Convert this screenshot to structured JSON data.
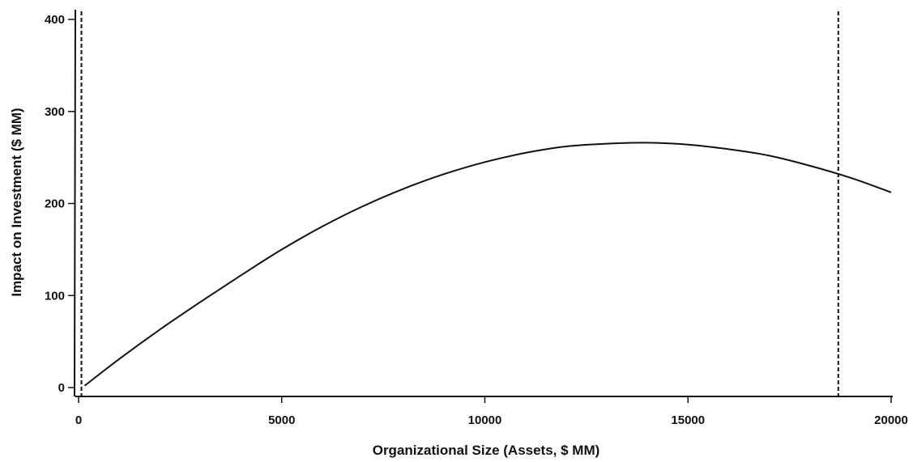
{
  "chart_data": {
    "type": "line",
    "title": "",
    "xlabel": "Organizational Size (Assets, $ MM)",
    "ylabel": "Impact on Investment ($ MM)",
    "xlim": [
      0,
      20000
    ],
    "ylim": [
      0,
      400
    ],
    "x_ticks": [
      0,
      5000,
      10000,
      15000,
      20000
    ],
    "y_ticks": [
      0,
      100,
      200,
      300,
      400
    ],
    "grid": false,
    "legend": "none",
    "line_color": "#111111",
    "series": [
      {
        "x": [
          150,
          1000,
          2000,
          3000,
          4000,
          5000,
          6000,
          7000,
          8000,
          9000,
          10000,
          11000,
          12000,
          13000,
          14000,
          15000,
          16000,
          17000,
          18000,
          19000,
          20000
        ],
        "values": [
          2,
          31,
          63,
          93,
          122,
          150,
          175,
          197,
          216,
          232,
          245,
          255,
          262,
          265,
          266,
          264,
          259,
          252,
          241,
          228,
          212
        ]
      }
    ],
    "reference_lines_x": [
      {
        "x": 70,
        "style": "dashed"
      },
      {
        "x": 18700,
        "style": "dashed"
      }
    ]
  }
}
